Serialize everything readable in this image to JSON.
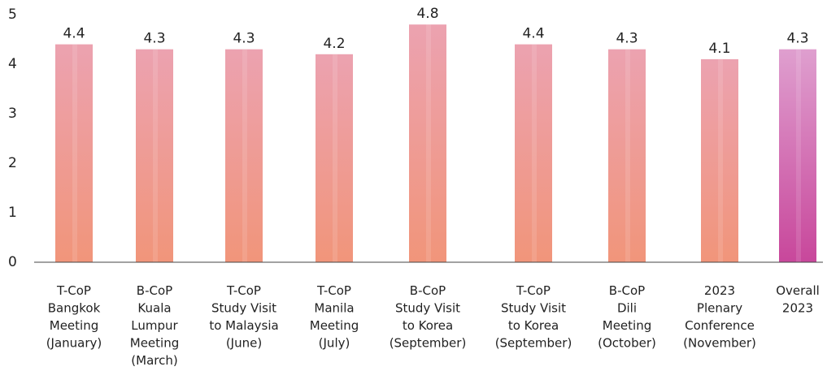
{
  "chart_data": {
    "type": "bar",
    "categories": [
      [
        "T-CoP",
        "Bangkok",
        "Meeting",
        "(January)"
      ],
      [
        "B-CoP",
        "Kuala",
        "Lumpur",
        "Meeting",
        "(March)"
      ],
      [
        "T-CoP",
        "Study Visit",
        "to Malaysia",
        "(June)"
      ],
      [
        "T-CoP",
        "Manila",
        "Meeting",
        "(July)"
      ],
      [
        "B-CoP",
        "Study Visit",
        "to Korea",
        "(September)"
      ],
      [
        "T-CoP",
        "Study Visit",
        "to Korea",
        "(September)"
      ],
      [
        "B-CoP",
        "Dili",
        "Meeting",
        "(October)"
      ],
      [
        "2023",
        "Plenary",
        "Conference",
        "(November)"
      ],
      [
        "Overall",
        "2023"
      ]
    ],
    "values": [
      4.4,
      4.3,
      4.3,
      4.2,
      4.8,
      4.4,
      4.3,
      4.1,
      4.3
    ],
    "colors": [
      [
        "#eca2b0",
        "#f1957a"
      ],
      [
        "#eca2b0",
        "#f1957a"
      ],
      [
        "#eca2b0",
        "#f1957a"
      ],
      [
        "#eca2b0",
        "#f1957a"
      ],
      [
        "#eca2b0",
        "#f1957a"
      ],
      [
        "#eca2b0",
        "#f1957a"
      ],
      [
        "#eca2b0",
        "#f1957a"
      ],
      [
        "#eca2b0",
        "#f1957a"
      ],
      [
        "#df9fcf",
        "#c8479b"
      ]
    ],
    "ylim": [
      0,
      5
    ],
    "yticks": [
      0,
      1,
      2,
      3,
      4,
      5
    ],
    "grid": false
  }
}
